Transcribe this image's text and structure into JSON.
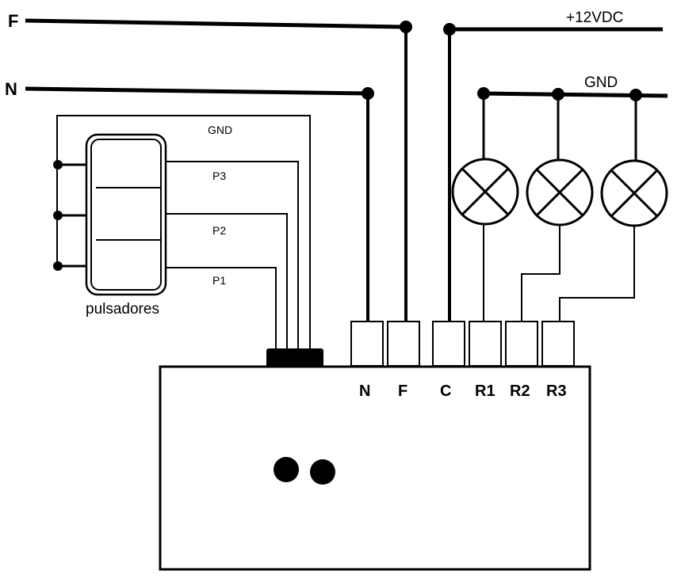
{
  "rails": {
    "phase": "F",
    "neutral": "N",
    "supply": "+12VDC",
    "ground": "GND"
  },
  "buttons": {
    "caption": "pulsadores",
    "gnd": "GND",
    "p3": "P3",
    "p2": "P2",
    "p1": "P1"
  },
  "terminals": [
    "N",
    "F",
    "C",
    "R1",
    "R2",
    "R3"
  ],
  "lamps": 3,
  "indicator_dots": 2
}
